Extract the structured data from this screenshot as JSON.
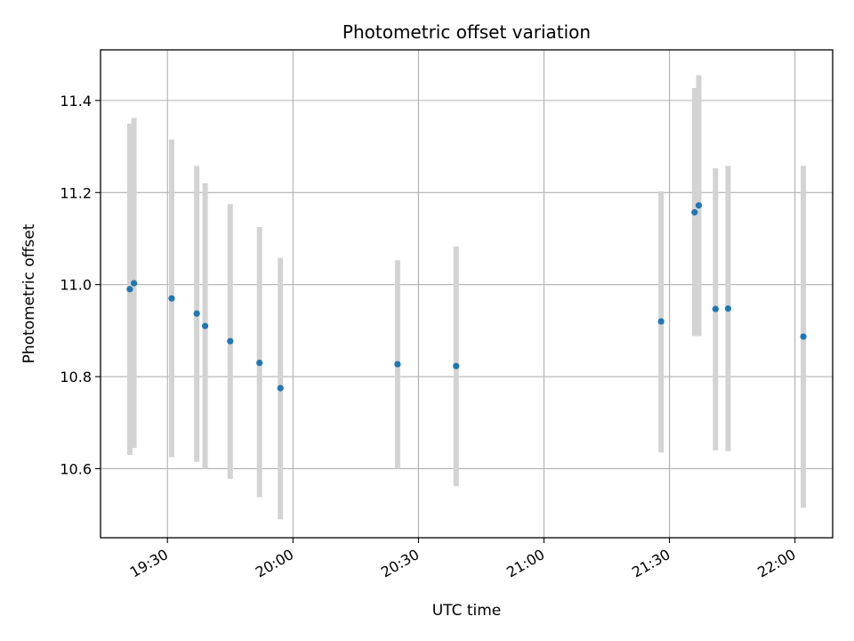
{
  "chart_data": {
    "type": "scatter",
    "title": "Photometric offset variation",
    "xlabel": "UTC time",
    "ylabel": "Photometric offset",
    "x_axis_type": "time",
    "xlim": [
      "19:14",
      "22:09"
    ],
    "ylim": [
      10.45,
      11.51
    ],
    "x_ticks": [
      "19:30",
      "20:00",
      "20:30",
      "21:00",
      "21:30",
      "22:00"
    ],
    "y_ticks": [
      10.6,
      10.8,
      11.0,
      11.2,
      11.4
    ],
    "y_tick_labels": [
      "10.6",
      "10.8",
      "11.0",
      "11.2",
      "11.4"
    ],
    "grid": true,
    "point_color": "#1f77b4",
    "errorbar_color": "#d3d3d3",
    "points": [
      {
        "x": "19:21",
        "y": 10.99,
        "low": 10.63,
        "high": 11.35
      },
      {
        "x": "19:22",
        "y": 11.003,
        "low": 10.645,
        "high": 11.362
      },
      {
        "x": "19:31",
        "y": 10.97,
        "low": 10.625,
        "high": 11.315
      },
      {
        "x": "19:37",
        "y": 10.937,
        "low": 10.615,
        "high": 11.258
      },
      {
        "x": "19:39",
        "y": 10.91,
        "low": 10.6,
        "high": 11.22
      },
      {
        "x": "19:45",
        "y": 10.877,
        "low": 10.578,
        "high": 11.175
      },
      {
        "x": "19:52",
        "y": 10.83,
        "low": 10.538,
        "high": 11.125
      },
      {
        "x": "19:57",
        "y": 10.775,
        "low": 10.49,
        "high": 11.058
      },
      {
        "x": "20:25",
        "y": 10.827,
        "low": 10.6,
        "high": 11.053
      },
      {
        "x": "20:39",
        "y": 10.823,
        "low": 10.562,
        "high": 11.083
      },
      {
        "x": "21:28",
        "y": 10.92,
        "low": 10.635,
        "high": 11.203
      },
      {
        "x": "21:36",
        "y": 11.157,
        "low": 10.888,
        "high": 11.427
      },
      {
        "x": "21:37",
        "y": 11.172,
        "low": 10.888,
        "high": 11.455
      },
      {
        "x": "21:41",
        "y": 10.947,
        "low": 10.64,
        "high": 11.253
      },
      {
        "x": "21:44",
        "y": 10.948,
        "low": 10.638,
        "high": 11.258
      },
      {
        "x": "22:02",
        "y": 10.887,
        "low": 10.515,
        "high": 11.258
      }
    ]
  }
}
